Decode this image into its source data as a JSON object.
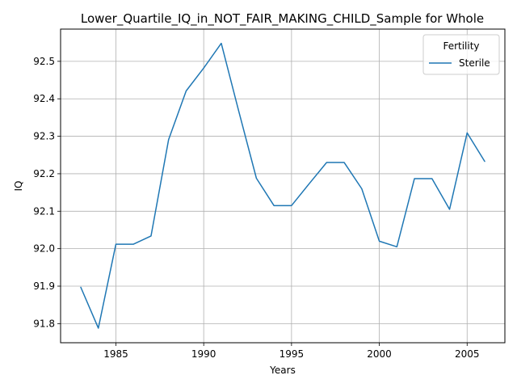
{
  "chart_data": {
    "type": "line",
    "title": "Lower_Quartile_IQ_in_NOT_FAIR_MAKING_CHILD_Sample for Whole",
    "xlabel": "Years",
    "ylabel": "IQ",
    "xlim": [
      1981.85,
      2007.15
    ],
    "ylim": [
      91.749,
      92.586
    ],
    "x_ticks": [
      1985,
      1990,
      1995,
      2000,
      2005
    ],
    "y_ticks": [
      91.8,
      91.9,
      92.0,
      92.1,
      92.2,
      92.3,
      92.4,
      92.5
    ],
    "x_tick_labels": [
      "1985",
      "1990",
      "1995",
      "2000",
      "2005"
    ],
    "y_tick_labels": [
      "91.8",
      "91.9",
      "92.0",
      "92.1",
      "92.2",
      "92.3",
      "92.4",
      "92.5"
    ],
    "grid": true,
    "legend": {
      "title": "Fertility",
      "placement": "top-right"
    },
    "x": [
      1983,
      1984,
      1985,
      1986,
      1987,
      1988,
      1989,
      1990,
      1991,
      1992,
      1993,
      1994,
      1995,
      1996,
      1997,
      1998,
      1999,
      2000,
      2001,
      2002,
      2003,
      2004,
      2005,
      2006
    ],
    "series": [
      {
        "name": "Sterile",
        "color": "#1f77b4",
        "values": [
          91.897,
          91.788,
          92.012,
          92.012,
          92.034,
          92.291,
          92.421,
          92.482,
          92.548,
          92.366,
          92.188,
          92.115,
          92.115,
          92.173,
          92.23,
          92.23,
          92.16,
          92.02,
          92.005,
          92.187,
          92.187,
          92.105,
          92.309,
          92.233
        ]
      }
    ]
  }
}
